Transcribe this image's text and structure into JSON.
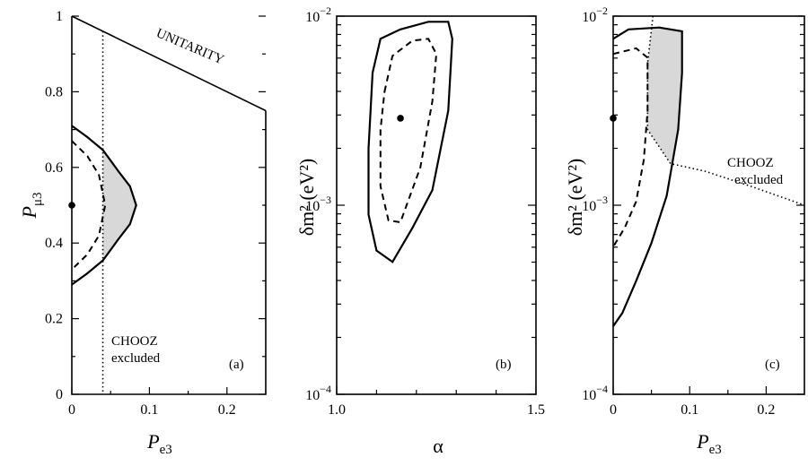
{
  "chart_data": [
    {
      "panel": "(a)",
      "type": "line",
      "xlabel": "P",
      "xlabel_sub": "e3",
      "ylabel": "P",
      "ylabel_sub": "μ3",
      "xlim": [
        0,
        0.25
      ],
      "ylim": [
        0,
        1
      ],
      "xticks": [
        "0",
        "0.1",
        "0.2"
      ],
      "yticks": [
        "0",
        "0.2",
        "0.4",
        "0.6",
        "0.8",
        "1"
      ],
      "unitarity_label": "UNITARITY",
      "unitarity_line": [
        [
          0,
          1
        ],
        [
          0.25,
          0.75
        ]
      ],
      "excluded_label_1": "CHOOZ",
      "excluded_label_2": "excluded",
      "chooz_limit_x": 0.04,
      "best_fit": [
        0,
        0.5
      ],
      "solid_contour": [
        [
          0,
          0.71
        ],
        [
          0.02,
          0.68
        ],
        [
          0.04,
          0.646
        ],
        [
          0.06,
          0.59
        ],
        [
          0.075,
          0.55
        ],
        [
          0.083,
          0.5
        ],
        [
          0.075,
          0.45
        ],
        [
          0.06,
          0.41
        ],
        [
          0.04,
          0.354
        ],
        [
          0.02,
          0.32
        ],
        [
          0,
          0.29
        ]
      ],
      "dashed_contour": [
        [
          0,
          0.67
        ],
        [
          0.02,
          0.63
        ],
        [
          0.035,
          0.58
        ],
        [
          0.043,
          0.5
        ],
        [
          0.035,
          0.42
        ],
        [
          0.02,
          0.37
        ],
        [
          0,
          0.33
        ]
      ]
    },
    {
      "panel": "(b)",
      "type": "line",
      "xlabel": "α",
      "ylabel": "δm² (eV²)",
      "xlim": [
        1.0,
        1.5
      ],
      "ylim_log10": [
        -4,
        -2
      ],
      "xticks": [
        "1.0",
        "1.5"
      ],
      "yticks": [
        "10^-4",
        "10^-3",
        "10^-2"
      ],
      "best_fit": [
        1.16,
        -2.54
      ],
      "solid_contour": [
        [
          1.09,
          -2.3
        ],
        [
          1.11,
          -2.12
        ],
        [
          1.16,
          -2.07
        ],
        [
          1.23,
          -2.03
        ],
        [
          1.28,
          -2.03
        ],
        [
          1.29,
          -2.12
        ],
        [
          1.28,
          -2.5
        ],
        [
          1.24,
          -2.92
        ],
        [
          1.19,
          -3.12
        ],
        [
          1.14,
          -3.3
        ],
        [
          1.1,
          -3.24
        ],
        [
          1.08,
          -3.05
        ],
        [
          1.08,
          -2.7
        ],
        [
          1.09,
          -2.3
        ]
      ],
      "dashed_contour": [
        [
          1.12,
          -2.4
        ],
        [
          1.14,
          -2.21
        ],
        [
          1.19,
          -2.13
        ],
        [
          1.23,
          -2.12
        ],
        [
          1.25,
          -2.2
        ],
        [
          1.24,
          -2.45
        ],
        [
          1.21,
          -2.8
        ],
        [
          1.16,
          -3.09
        ],
        [
          1.13,
          -3.08
        ],
        [
          1.11,
          -2.9
        ],
        [
          1.11,
          -2.6
        ],
        [
          1.12,
          -2.4
        ]
      ]
    },
    {
      "panel": "(c)",
      "type": "line",
      "xlabel": "P",
      "xlabel_sub": "e3",
      "ylabel": "δm² (eV²)",
      "xlim": [
        0,
        0.25
      ],
      "ylim_log10": [
        -4,
        -2
      ],
      "xticks": [
        "0",
        "0.1",
        "0.2"
      ],
      "yticks": [
        "10^-4",
        "10^-3",
        "10^-2"
      ],
      "excluded_label_1": "CHOOZ",
      "excluded_label_2": "excluded",
      "best_fit": [
        0,
        -2.54
      ],
      "chooz_curve": [
        [
          0.052,
          -2.0
        ],
        [
          0.045,
          -2.25
        ],
        [
          0.045,
          -2.6
        ],
        [
          0.075,
          -2.78
        ],
        [
          0.12,
          -2.82
        ],
        [
          0.18,
          -2.9
        ],
        [
          0.25,
          -3.0
        ]
      ],
      "solid_contour": [
        [
          0,
          -2.12
        ],
        [
          0.02,
          -2.07
        ],
        [
          0.06,
          -2.06
        ],
        [
          0.09,
          -2.08
        ],
        [
          0.09,
          -2.3
        ],
        [
          0.085,
          -2.6
        ],
        [
          0.07,
          -2.95
        ],
        [
          0.05,
          -3.2
        ],
        [
          0.03,
          -3.4
        ],
        [
          0.012,
          -3.57
        ],
        [
          0,
          -3.64
        ]
      ],
      "dashed_contour": [
        [
          0,
          -2.2
        ],
        [
          0.03,
          -2.17
        ],
        [
          0.045,
          -2.22
        ],
        [
          0.045,
          -2.5
        ],
        [
          0.04,
          -2.76
        ],
        [
          0.03,
          -2.98
        ],
        [
          0.015,
          -3.12
        ],
        [
          0,
          -3.22
        ]
      ]
    }
  ]
}
